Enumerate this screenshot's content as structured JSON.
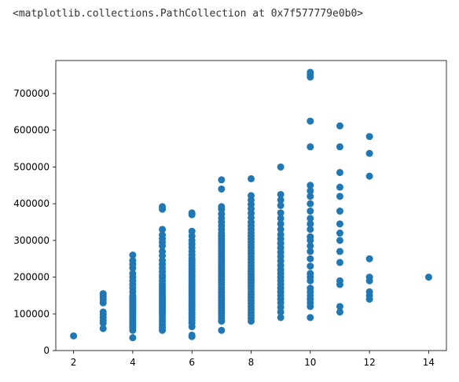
{
  "output_text": "<matplotlib.collections.PathCollection at 0x7f577779e0b0>",
  "chart_data": {
    "type": "scatter",
    "title": "",
    "xlabel": "",
    "ylabel": "",
    "xlim": [
      1.4,
      14.6
    ],
    "ylim": [
      0,
      790000
    ],
    "xticks": [
      2,
      4,
      6,
      8,
      10,
      12,
      14
    ],
    "xtick_labels": [
      "2",
      "4",
      "6",
      "8",
      "10",
      "12",
      "14"
    ],
    "yticks": [
      0,
      100000,
      200000,
      300000,
      400000,
      500000,
      600000,
      700000
    ],
    "ytick_labels": [
      "0",
      "100000",
      "200000",
      "300000",
      "400000",
      "500000",
      "600000",
      "700000"
    ],
    "grid": false,
    "color": "#1f77b4",
    "points": [
      [
        2,
        40000
      ],
      [
        3,
        60000
      ],
      [
        3,
        75000
      ],
      [
        3,
        82000
      ],
      [
        3,
        90000
      ],
      [
        3,
        98000
      ],
      [
        3,
        105000
      ],
      [
        3,
        130000
      ],
      [
        3,
        138000
      ],
      [
        3,
        145000
      ],
      [
        3,
        150000
      ],
      [
        3,
        155000
      ],
      [
        4,
        35000
      ],
      [
        4,
        55000
      ],
      [
        4,
        62000
      ],
      [
        4,
        68000
      ],
      [
        4,
        72000
      ],
      [
        4,
        78000
      ],
      [
        4,
        84000
      ],
      [
        4,
        90000
      ],
      [
        4,
        95000
      ],
      [
        4,
        100000
      ],
      [
        4,
        105000
      ],
      [
        4,
        110000
      ],
      [
        4,
        115000
      ],
      [
        4,
        120000
      ],
      [
        4,
        125000
      ],
      [
        4,
        130000
      ],
      [
        4,
        135000
      ],
      [
        4,
        140000
      ],
      [
        4,
        145000
      ],
      [
        4,
        150000
      ],
      [
        4,
        160000
      ],
      [
        4,
        170000
      ],
      [
        4,
        180000
      ],
      [
        4,
        190000
      ],
      [
        4,
        200000
      ],
      [
        4,
        210000
      ],
      [
        4,
        225000
      ],
      [
        4,
        235000
      ],
      [
        4,
        245000
      ],
      [
        4,
        260000
      ],
      [
        5,
        55000
      ],
      [
        5,
        62000
      ],
      [
        5,
        70000
      ],
      [
        5,
        78000
      ],
      [
        5,
        85000
      ],
      [
        5,
        92000
      ],
      [
        5,
        100000
      ],
      [
        5,
        106000
      ],
      [
        5,
        112000
      ],
      [
        5,
        118000
      ],
      [
        5,
        124000
      ],
      [
        5,
        130000
      ],
      [
        5,
        136000
      ],
      [
        5,
        142000
      ],
      [
        5,
        148000
      ],
      [
        5,
        155000
      ],
      [
        5,
        162000
      ],
      [
        5,
        168000
      ],
      [
        5,
        175000
      ],
      [
        5,
        182000
      ],
      [
        5,
        190000
      ],
      [
        5,
        198000
      ],
      [
        5,
        205000
      ],
      [
        5,
        215000
      ],
      [
        5,
        225000
      ],
      [
        5,
        235000
      ],
      [
        5,
        245000
      ],
      [
        5,
        258000
      ],
      [
        5,
        270000
      ],
      [
        5,
        285000
      ],
      [
        5,
        295000
      ],
      [
        5,
        305000
      ],
      [
        5,
        315000
      ],
      [
        5,
        330000
      ],
      [
        5,
        385000
      ],
      [
        5,
        392000
      ],
      [
        6,
        38000
      ],
      [
        6,
        42000
      ],
      [
        6,
        65000
      ],
      [
        6,
        75000
      ],
      [
        6,
        82000
      ],
      [
        6,
        90000
      ],
      [
        6,
        97000
      ],
      [
        6,
        104000
      ],
      [
        6,
        111000
      ],
      [
        6,
        118000
      ],
      [
        6,
        125000
      ],
      [
        6,
        132000
      ],
      [
        6,
        139000
      ],
      [
        6,
        146000
      ],
      [
        6,
        153000
      ],
      [
        6,
        160000
      ],
      [
        6,
        167000
      ],
      [
        6,
        174000
      ],
      [
        6,
        181000
      ],
      [
        6,
        188000
      ],
      [
        6,
        195000
      ],
      [
        6,
        202000
      ],
      [
        6,
        209000
      ],
      [
        6,
        216000
      ],
      [
        6,
        223000
      ],
      [
        6,
        230000
      ],
      [
        6,
        237000
      ],
      [
        6,
        244000
      ],
      [
        6,
        251000
      ],
      [
        6,
        260000
      ],
      [
        6,
        270000
      ],
      [
        6,
        280000
      ],
      [
        6,
        290000
      ],
      [
        6,
        300000
      ],
      [
        6,
        312000
      ],
      [
        6,
        325000
      ],
      [
        6,
        370000
      ],
      [
        6,
        375000
      ],
      [
        7,
        55000
      ],
      [
        7,
        80000
      ],
      [
        7,
        88000
      ],
      [
        7,
        95000
      ],
      [
        7,
        102000
      ],
      [
        7,
        109000
      ],
      [
        7,
        116000
      ],
      [
        7,
        123000
      ],
      [
        7,
        130000
      ],
      [
        7,
        137000
      ],
      [
        7,
        144000
      ],
      [
        7,
        151000
      ],
      [
        7,
        158000
      ],
      [
        7,
        165000
      ],
      [
        7,
        172000
      ],
      [
        7,
        179000
      ],
      [
        7,
        186000
      ],
      [
        7,
        193000
      ],
      [
        7,
        200000
      ],
      [
        7,
        207000
      ],
      [
        7,
        214000
      ],
      [
        7,
        221000
      ],
      [
        7,
        228000
      ],
      [
        7,
        235000
      ],
      [
        7,
        242000
      ],
      [
        7,
        249000
      ],
      [
        7,
        256000
      ],
      [
        7,
        263000
      ],
      [
        7,
        270000
      ],
      [
        7,
        277000
      ],
      [
        7,
        284000
      ],
      [
        7,
        291000
      ],
      [
        7,
        298000
      ],
      [
        7,
        305000
      ],
      [
        7,
        312000
      ],
      [
        7,
        320000
      ],
      [
        7,
        330000
      ],
      [
        7,
        340000
      ],
      [
        7,
        350000
      ],
      [
        7,
        360000
      ],
      [
        7,
        372000
      ],
      [
        7,
        385000
      ],
      [
        7,
        392000
      ],
      [
        7,
        440000
      ],
      [
        7,
        465000
      ],
      [
        8,
        80000
      ],
      [
        8,
        88000
      ],
      [
        8,
        96000
      ],
      [
        8,
        104000
      ],
      [
        8,
        112000
      ],
      [
        8,
        120000
      ],
      [
        8,
        128000
      ],
      [
        8,
        136000
      ],
      [
        8,
        144000
      ],
      [
        8,
        152000
      ],
      [
        8,
        160000
      ],
      [
        8,
        168000
      ],
      [
        8,
        176000
      ],
      [
        8,
        184000
      ],
      [
        8,
        192000
      ],
      [
        8,
        200000
      ],
      [
        8,
        208000
      ],
      [
        8,
        216000
      ],
      [
        8,
        224000
      ],
      [
        8,
        232000
      ],
      [
        8,
        240000
      ],
      [
        8,
        248000
      ],
      [
        8,
        256000
      ],
      [
        8,
        264000
      ],
      [
        8,
        272000
      ],
      [
        8,
        280000
      ],
      [
        8,
        288000
      ],
      [
        8,
        296000
      ],
      [
        8,
        304000
      ],
      [
        8,
        312000
      ],
      [
        8,
        320000
      ],
      [
        8,
        330000
      ],
      [
        8,
        340000
      ],
      [
        8,
        350000
      ],
      [
        8,
        362000
      ],
      [
        8,
        374000
      ],
      [
        8,
        386000
      ],
      [
        8,
        398000
      ],
      [
        8,
        410000
      ],
      [
        8,
        422000
      ],
      [
        8,
        468000
      ],
      [
        9,
        90000
      ],
      [
        9,
        105000
      ],
      [
        9,
        118000
      ],
      [
        9,
        130000
      ],
      [
        9,
        140000
      ],
      [
        9,
        150000
      ],
      [
        9,
        160000
      ],
      [
        9,
        170000
      ],
      [
        9,
        180000
      ],
      [
        9,
        190000
      ],
      [
        9,
        200000
      ],
      [
        9,
        210000
      ],
      [
        9,
        220000
      ],
      [
        9,
        232000
      ],
      [
        9,
        244000
      ],
      [
        9,
        256000
      ],
      [
        9,
        268000
      ],
      [
        9,
        280000
      ],
      [
        9,
        292000
      ],
      [
        9,
        304000
      ],
      [
        9,
        316000
      ],
      [
        9,
        330000
      ],
      [
        9,
        345000
      ],
      [
        9,
        360000
      ],
      [
        9,
        375000
      ],
      [
        9,
        395000
      ],
      [
        9,
        410000
      ],
      [
        9,
        425000
      ],
      [
        9,
        500000
      ],
      [
        10,
        90000
      ],
      [
        10,
        120000
      ],
      [
        10,
        130000
      ],
      [
        10,
        140000
      ],
      [
        10,
        150000
      ],
      [
        10,
        160000
      ],
      [
        10,
        170000
      ],
      [
        10,
        190000
      ],
      [
        10,
        200000
      ],
      [
        10,
        210000
      ],
      [
        10,
        230000
      ],
      [
        10,
        250000
      ],
      [
        10,
        270000
      ],
      [
        10,
        285000
      ],
      [
        10,
        300000
      ],
      [
        10,
        310000
      ],
      [
        10,
        330000
      ],
      [
        10,
        345000
      ],
      [
        10,
        360000
      ],
      [
        10,
        380000
      ],
      [
        10,
        400000
      ],
      [
        10,
        420000
      ],
      [
        10,
        435000
      ],
      [
        10,
        450000
      ],
      [
        10,
        555000
      ],
      [
        10,
        625000
      ],
      [
        10,
        745000
      ],
      [
        10,
        752000
      ],
      [
        10,
        758000
      ],
      [
        11,
        105000
      ],
      [
        11,
        120000
      ],
      [
        11,
        180000
      ],
      [
        11,
        190000
      ],
      [
        11,
        240000
      ],
      [
        11,
        270000
      ],
      [
        11,
        300000
      ],
      [
        11,
        320000
      ],
      [
        11,
        345000
      ],
      [
        11,
        380000
      ],
      [
        11,
        420000
      ],
      [
        11,
        445000
      ],
      [
        11,
        485000
      ],
      [
        11,
        555000
      ],
      [
        11,
        612000
      ],
      [
        12,
        140000
      ],
      [
        12,
        150000
      ],
      [
        12,
        160000
      ],
      [
        12,
        190000
      ],
      [
        12,
        200000
      ],
      [
        12,
        250000
      ],
      [
        12,
        475000
      ],
      [
        12,
        537000
      ],
      [
        12,
        583000
      ],
      [
        14,
        200000
      ]
    ]
  }
}
